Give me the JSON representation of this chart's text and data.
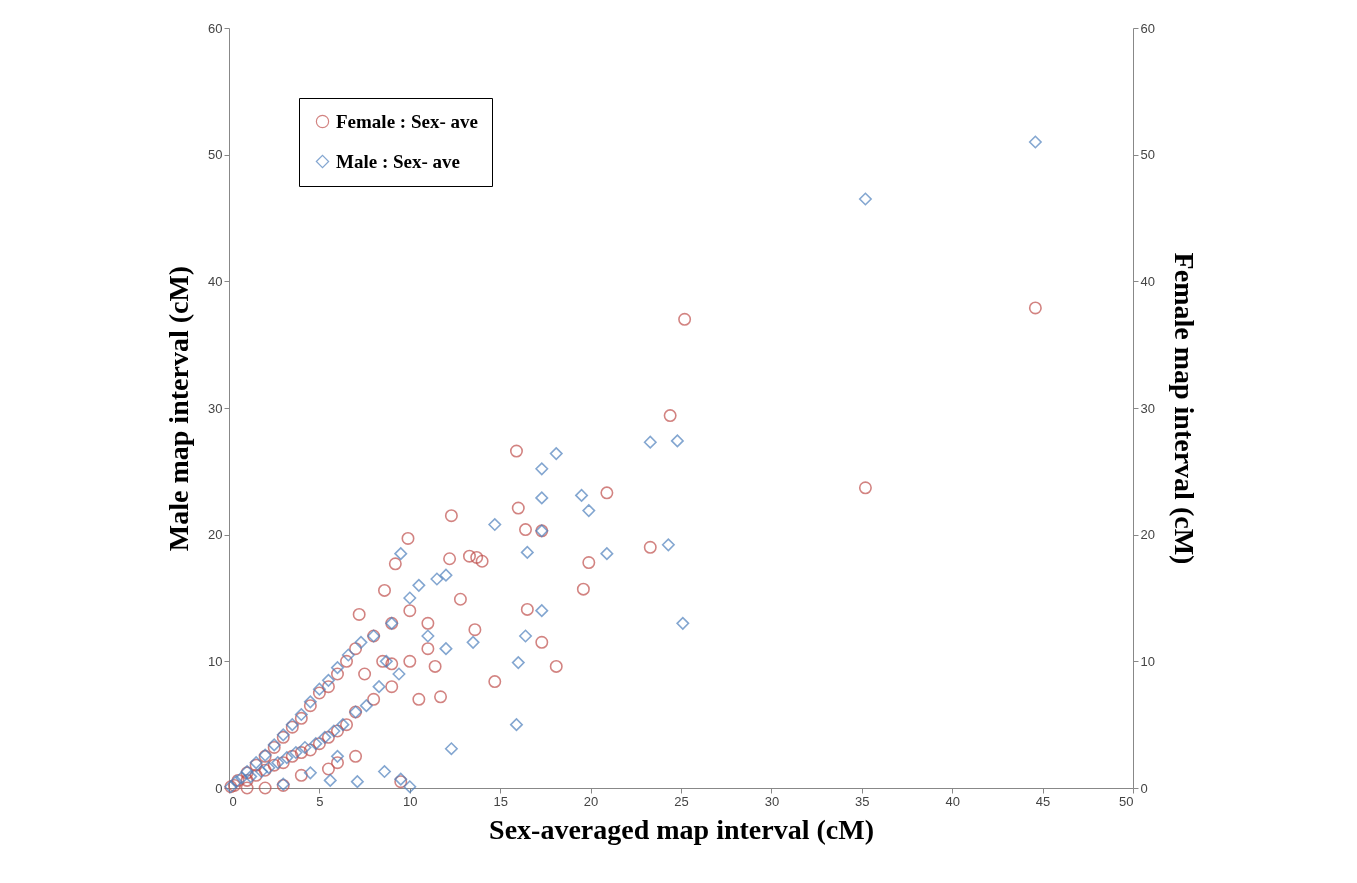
{
  "chart_data": {
    "type": "scatter",
    "xlabel": "Sex-averaged map interval (cM)",
    "ylabel": "Male map interval (cM)",
    "y2label": "Female map interval (cM)",
    "xlim": [
      0,
      50
    ],
    "xticks": [
      0,
      5,
      10,
      15,
      20,
      25,
      30,
      35,
      40,
      45,
      50
    ],
    "ylim": [
      0,
      60
    ],
    "yticks": [
      0,
      10,
      20,
      30,
      40,
      50,
      60
    ],
    "y2lim": [
      0,
      60
    ],
    "y2ticks": [
      0,
      10,
      20,
      30,
      40,
      50,
      60
    ],
    "grid": false,
    "legend": "top left",
    "series": [
      {
        "name": "Female : Sex- ave",
        "color": "#c0504d",
        "marker": "circle",
        "axis": "y2",
        "x": [
          0.1,
          0.3,
          0.5,
          1,
          1,
          1.5,
          1.5,
          2,
          2,
          2.5,
          2.5,
          3,
          3,
          3.5,
          3.5,
          4,
          4,
          4.5,
          4.5,
          5,
          5,
          5.5,
          5.5,
          6,
          6,
          6.5,
          6.5,
          7,
          7,
          7.5,
          8,
          8,
          8.5,
          9,
          9,
          10,
          10,
          11,
          11,
          3,
          4,
          5.5,
          2,
          1,
          6,
          7,
          25.2,
          24.4,
          44.6,
          35.2,
          23.3,
          20.9,
          19.9,
          19.6,
          18.1,
          17.3,
          17.3,
          16.5,
          16.4,
          16,
          15.9,
          14.7,
          13.3,
          13.7,
          14,
          12.3,
          12.2,
          9.9,
          9.2,
          12.8,
          13.6,
          8.6,
          7.2,
          11.7,
          11.4,
          10.5,
          9,
          9.5
        ],
        "values": [
          0.1,
          0.2,
          0.6,
          1.2,
          0.6,
          1.8,
          1,
          2.5,
          1.4,
          3.2,
          1.8,
          4,
          2,
          4.8,
          2.5,
          5.5,
          2.8,
          6.5,
          3,
          7.5,
          3.5,
          8,
          4,
          9,
          4.5,
          10,
          5,
          11,
          6,
          9,
          12,
          7,
          10,
          13,
          8,
          14,
          10,
          13,
          11,
          0.2,
          1,
          1.5,
          0,
          0,
          2,
          2.5,
          37,
          29.4,
          37.9,
          23.7,
          19,
          23.3,
          17.8,
          15.7,
          9.6,
          20.3,
          11.5,
          14.1,
          20.4,
          22.1,
          26.6,
          8.4,
          18.3,
          18.2,
          17.9,
          21.5,
          18.1,
          19.7,
          17.7,
          14.9,
          12.5,
          15.6,
          13.7,
          7.2,
          9.6,
          7,
          9.8,
          0.5
        ]
      },
      {
        "name": "Male : Sex- ave",
        "color": "#4f81bd",
        "marker": "diamond",
        "x": [
          0.1,
          0.4,
          0.7,
          1,
          1.2,
          1.5,
          1.8,
          2,
          2.2,
          2.5,
          2.7,
          3,
          3.2,
          3.5,
          3.7,
          4,
          4.2,
          4.5,
          4.8,
          5,
          5.3,
          5.5,
          5.8,
          6,
          6.3,
          6.6,
          7,
          7.3,
          7.6,
          8,
          8.3,
          8.7,
          9,
          9.4,
          10,
          10.5,
          11,
          11.5,
          12,
          13.5,
          12,
          3,
          4.5,
          6,
          44.6,
          35.2,
          24.8,
          23.3,
          24.3,
          25.1,
          18.1,
          17.3,
          17.3,
          19.5,
          19.9,
          14.7,
          17.3,
          16.5,
          20.9,
          16.4,
          17.3,
          16,
          15.9,
          12.3,
          9.5,
          9.5,
          10,
          8.6,
          7.1,
          5.6
        ],
        "values": [
          0.1,
          0.5,
          0.8,
          1.3,
          0.9,
          2,
          1.3,
          2.6,
          1.6,
          3.4,
          2,
          4.2,
          2.4,
          5,
          2.8,
          5.8,
          3.2,
          6.8,
          3.5,
          7.8,
          4,
          8.5,
          4.5,
          9.5,
          5,
          10.5,
          6,
          11.5,
          6.5,
          12,
          8,
          10,
          13,
          9,
          15,
          16,
          12,
          16.5,
          16.8,
          11.5,
          11,
          0.3,
          1.2,
          2.5,
          51,
          46.5,
          27.4,
          27.3,
          19.2,
          13,
          26.4,
          25.2,
          22.9,
          23.1,
          21.9,
          20.8,
          20.3,
          18.6,
          18.5,
          12,
          14,
          9.9,
          5,
          3.1,
          18.5,
          0.7,
          0.1,
          1.3,
          0.5,
          0.6
        ]
      }
    ]
  }
}
